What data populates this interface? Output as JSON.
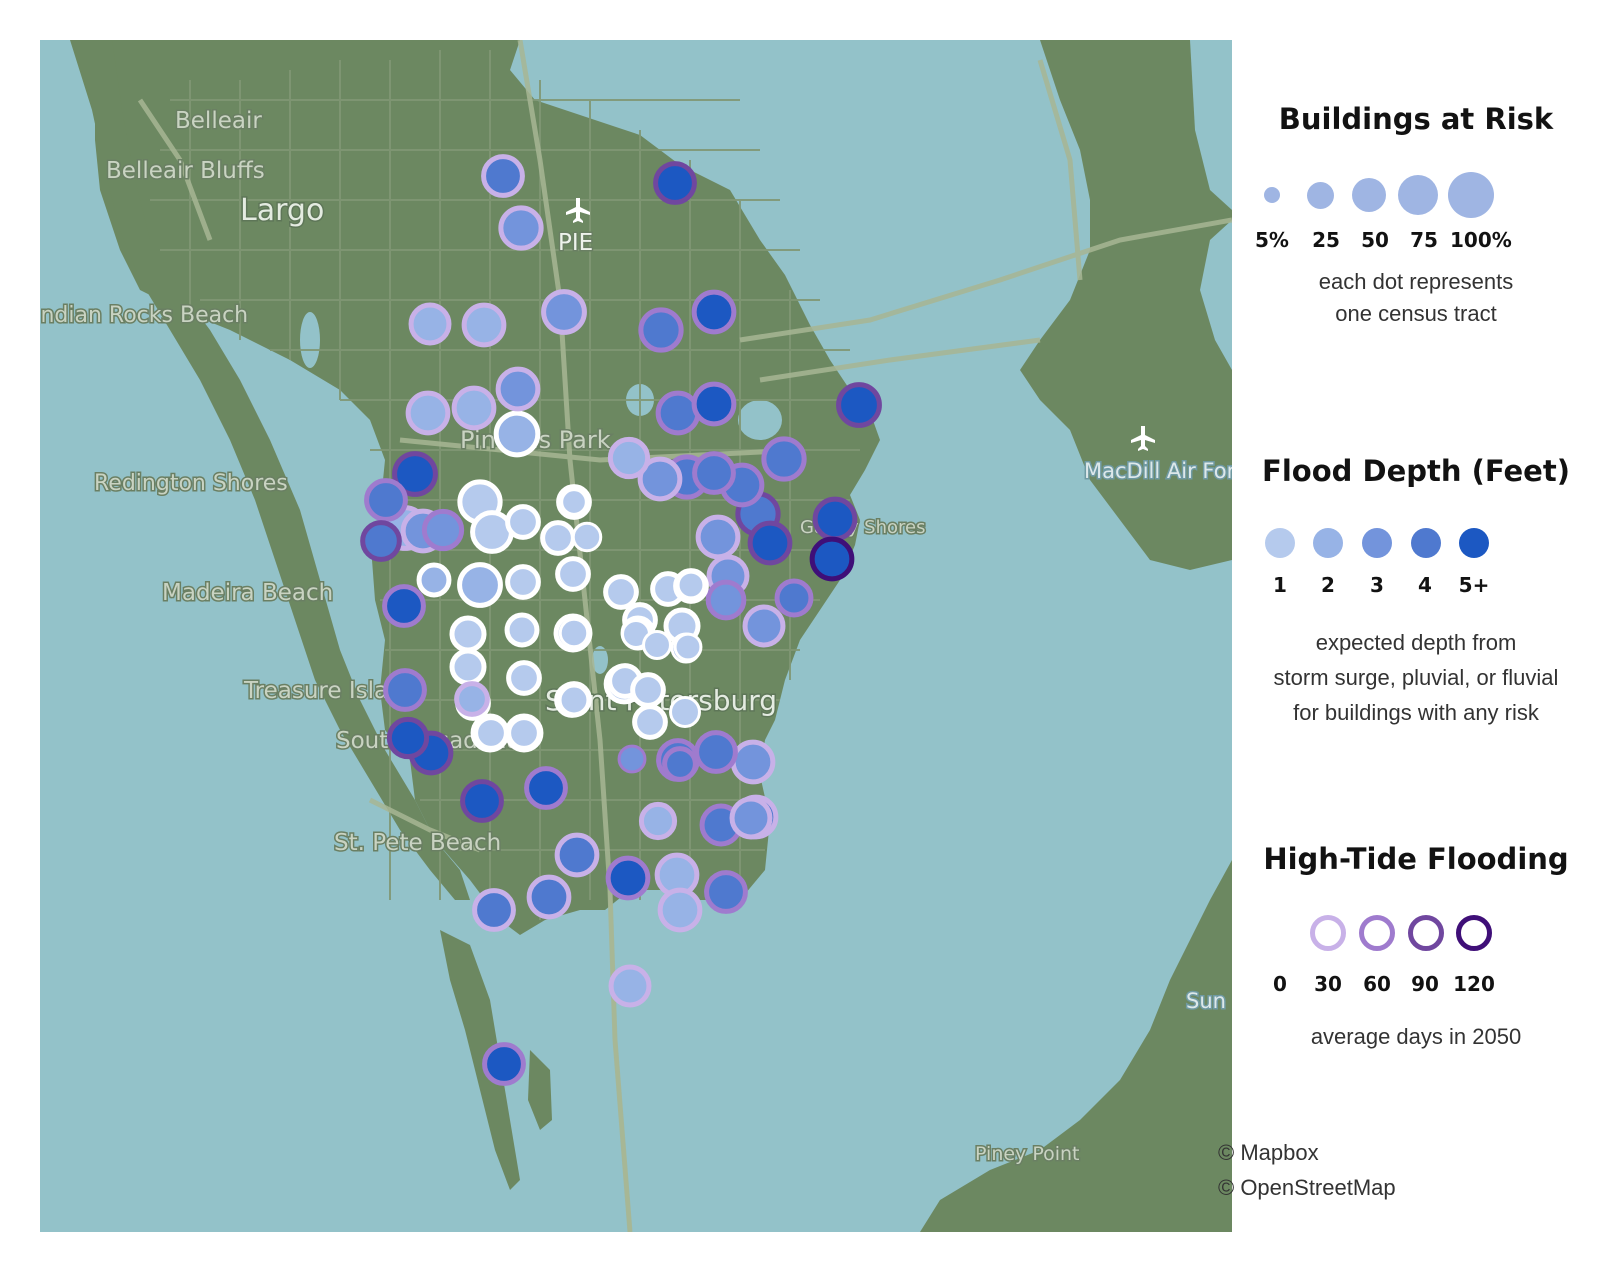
{
  "map": {
    "place_labels": [
      "Belleair",
      "Belleair Bluffs",
      "Largo",
      "PIE",
      "Indian Rocks Beach",
      "Pinellas Park",
      "Redington Shores",
      "MacDill Air Force Base",
      "Madeira Beach",
      "Treasure Island",
      "South Pasadena",
      "St. Pete Beach",
      "Saint Petersburg",
      "Gandy Shores",
      "Piney Point",
      "Sun"
    ],
    "colors": {
      "water": "#93c2c9",
      "land": "#6c8861",
      "road_major": "#a7b694",
      "road_minor": "#819774",
      "depth_1": "#b5caed",
      "depth_2": "#97b3e6",
      "depth_3": "#7394dc",
      "depth_4": "#4f79cf",
      "depth_5": "#1c58c2",
      "tide_0": "#ffffff",
      "tide_30": "#c8b1e8",
      "tide_60": "#9f7bce",
      "tide_90": "#70479f",
      "tide_120": "#3f0f78"
    },
    "tracts": [
      {
        "risk": 45,
        "depth": 4,
        "tide": 30
      },
      {
        "risk": 45,
        "depth": 5,
        "tide": 90
      },
      {
        "risk": 50,
        "depth": 3,
        "tide": 30
      },
      {
        "risk": 42,
        "depth": 2,
        "tide": 30
      },
      {
        "risk": 48,
        "depth": 2,
        "tide": 30
      },
      {
        "risk": 52,
        "depth": 3,
        "tide": 30
      },
      {
        "risk": 50,
        "depth": 4,
        "tide": 60
      },
      {
        "risk": 48,
        "depth": 5,
        "tide": 60
      },
      {
        "risk": 48,
        "depth": 2,
        "tide": 30
      },
      {
        "risk": 48,
        "depth": 2,
        "tide": 30
      },
      {
        "risk": 48,
        "depth": 3,
        "tide": 30
      },
      {
        "risk": 55,
        "depth": 2,
        "tide": 0
      },
      {
        "risk": 48,
        "depth": 4,
        "tide": 60
      },
      {
        "risk": 48,
        "depth": 5,
        "tide": 60
      },
      {
        "risk": 52,
        "depth": 5,
        "tide": 90
      },
      {
        "risk": 40,
        "depth": 2,
        "tide": 30
      },
      {
        "risk": 48,
        "depth": 3,
        "tide": 30
      },
      {
        "risk": 50,
        "depth": 4,
        "tide": 60
      },
      {
        "risk": 45,
        "depth": 4,
        "tide": 60
      },
      {
        "risk": 48,
        "depth": 4,
        "tide": 60
      },
      {
        "risk": 50,
        "depth": 4,
        "tide": 60
      },
      {
        "risk": 52,
        "depth": 5,
        "tide": 90
      },
      {
        "risk": 48,
        "depth": 3,
        "tide": 30
      },
      {
        "risk": 45,
        "depth": 4,
        "tide": 60
      },
      {
        "risk": 52,
        "depth": 2,
        "tide": 30
      },
      {
        "risk": 40,
        "depth": 3,
        "tide": 60
      },
      {
        "risk": 38,
        "depth": 4,
        "tide": 90
      },
      {
        "risk": 50,
        "depth": 1,
        "tide": 0
      },
      {
        "risk": 45,
        "depth": 1,
        "tide": 0
      },
      {
        "risk": 52,
        "depth": 2,
        "tide": 0
      },
      {
        "risk": 48,
        "depth": 3,
        "tide": 30
      },
      {
        "risk": 48,
        "depth": 5,
        "tide": 90
      },
      {
        "risk": 48,
        "depth": 5,
        "tide": 90
      },
      {
        "risk": 48,
        "depth": 5,
        "tide": 120
      },
      {
        "risk": 42,
        "depth": 3,
        "tide": 30
      },
      {
        "risk": 35,
        "depth": 3,
        "tide": 60
      },
      {
        "risk": 30,
        "depth": 4,
        "tide": 60
      },
      {
        "risk": 50,
        "depth": 4,
        "tide": 90
      },
      {
        "risk": 42,
        "depth": 3,
        "tide": 30
      },
      {
        "risk": 22,
        "depth": 1,
        "tide": 0
      },
      {
        "risk": 22,
        "depth": 1,
        "tide": 0
      },
      {
        "risk": 22,
        "depth": 1,
        "tide": 0
      },
      {
        "risk": 15,
        "depth": 1,
        "tide": 0
      },
      {
        "risk": 20,
        "depth": 2,
        "tide": 0
      },
      {
        "risk": 22,
        "depth": 1,
        "tide": 0
      },
      {
        "risk": 22,
        "depth": 1,
        "tide": 0
      },
      {
        "risk": 25,
        "depth": 1,
        "tide": 0
      },
      {
        "risk": 25,
        "depth": 1,
        "tide": 0
      },
      {
        "risk": 20,
        "depth": 1,
        "tide": 0
      },
      {
        "risk": 15,
        "depth": 1,
        "tide": 0
      },
      {
        "risk": 22,
        "depth": 1,
        "tide": 0
      },
      {
        "risk": 22,
        "depth": 1,
        "tide": 0
      },
      {
        "risk": 22,
        "depth": 1,
        "tide": 0
      },
      {
        "risk": 22,
        "depth": 1,
        "tide": 0
      },
      {
        "risk": 22,
        "depth": 1,
        "tide": 0
      },
      {
        "risk": 14,
        "depth": 1,
        "tide": 0
      },
      {
        "risk": 22,
        "depth": 1,
        "tide": 0
      },
      {
        "risk": 22,
        "depth": 1,
        "tide": 0
      },
      {
        "risk": 25,
        "depth": 1,
        "tide": 0
      },
      {
        "risk": 22,
        "depth": 1,
        "tide": 0
      },
      {
        "risk": 22,
        "depth": 1,
        "tide": 0
      },
      {
        "risk": 22,
        "depth": 1,
        "tide": 0
      },
      {
        "risk": 22,
        "depth": 1,
        "tide": 0
      },
      {
        "risk": 22,
        "depth": 1,
        "tide": 0
      },
      {
        "risk": 18,
        "depth": 1,
        "tide": 0
      },
      {
        "risk": 22,
        "depth": 1,
        "tide": 0
      },
      {
        "risk": 14,
        "depth": 1,
        "tide": 0
      },
      {
        "risk": 16,
        "depth": 3,
        "tide": 0
      },
      {
        "risk": 20,
        "depth": 1,
        "tide": 0
      },
      {
        "risk": 20,
        "depth": 1,
        "tide": 0
      },
      {
        "risk": 12,
        "depth": 1,
        "tide": 0
      },
      {
        "risk": 12,
        "depth": 1,
        "tide": 0
      },
      {
        "risk": 12,
        "depth": 1,
        "tide": 0
      },
      {
        "risk": 10,
        "depth": 1,
        "tide": 0
      },
      {
        "risk": 30,
        "depth": 1,
        "tide": 0
      },
      {
        "risk": 30,
        "depth": 2,
        "tide": 0
      },
      {
        "risk": 30,
        "depth": 2,
        "tide": 0
      },
      {
        "risk": 35,
        "depth": 1,
        "tide": 0
      },
      {
        "risk": 45,
        "depth": 4,
        "tide": 60
      },
      {
        "risk": 40,
        "depth": 5,
        "tide": 90
      },
      {
        "risk": 48,
        "depth": 5,
        "tide": 90
      },
      {
        "risk": 45,
        "depth": 5,
        "tide": 90
      },
      {
        "risk": 22,
        "depth": 2,
        "tide": 30
      },
      {
        "risk": 45,
        "depth": 5,
        "tide": 60
      },
      {
        "risk": 45,
        "depth": 4,
        "tide": 60
      },
      {
        "risk": 12,
        "depth": 3,
        "tide": 60
      },
      {
        "risk": 22,
        "depth": 4,
        "tide": 60
      },
      {
        "risk": 45,
        "depth": 4,
        "tide": 60
      },
      {
        "risk": 48,
        "depth": 3,
        "tide": 30
      },
      {
        "risk": 48,
        "depth": 4,
        "tide": 30
      },
      {
        "risk": 28,
        "depth": 2,
        "tide": 30
      },
      {
        "risk": 42,
        "depth": 4,
        "tide": 60
      },
      {
        "risk": 48,
        "depth": 4,
        "tide": 30
      },
      {
        "risk": 48,
        "depth": 4,
        "tide": 30
      },
      {
        "risk": 48,
        "depth": 5,
        "tide": 60
      },
      {
        "risk": 48,
        "depth": 2,
        "tide": 30
      },
      {
        "risk": 48,
        "depth": 2,
        "tide": 30
      },
      {
        "risk": 42,
        "depth": 2,
        "tide": 30
      },
      {
        "risk": 45,
        "depth": 4,
        "tide": 60
      },
      {
        "risk": 45,
        "depth": 4,
        "tide": 30
      },
      {
        "risk": 45,
        "depth": 5,
        "tide": 60
      },
      {
        "risk": 42,
        "depth": 3,
        "tide": 30
      },
      {
        "risk": 45,
        "depth": 5,
        "tide": 60
      }
    ]
  },
  "legend": {
    "risk": {
      "title": "Buildings at Risk",
      "items": [
        {
          "label": "5%",
          "value": 5
        },
        {
          "label": "25",
          "value": 25
        },
        {
          "label": "50",
          "value": 50
        },
        {
          "label": "75",
          "value": 75
        },
        {
          "label": "100%",
          "value": 100
        }
      ],
      "note": [
        "each dot represents",
        "one census tract"
      ],
      "dot_color": "#9fb5e3"
    },
    "depth": {
      "title": "Flood Depth (Feet)",
      "items": [
        {
          "label": "1",
          "level": 1
        },
        {
          "label": "2",
          "level": 2
        },
        {
          "label": "3",
          "level": 3
        },
        {
          "label": "4",
          "level": 4
        },
        {
          "label": "5+",
          "level": 5
        }
      ],
      "note": [
        "expected depth from",
        "storm surge, pluvial, or fluvial",
        "for buildings with any risk"
      ]
    },
    "tide": {
      "title": "High-Tide Flooding",
      "items": [
        {
          "label": "0",
          "days": 0
        },
        {
          "label": "30",
          "days": 30
        },
        {
          "label": "60",
          "days": 60
        },
        {
          "label": "90",
          "days": 90
        },
        {
          "label": "120",
          "days": 120
        }
      ],
      "note": [
        "average days in 2050"
      ]
    },
    "credits": [
      "© Mapbox",
      "© OpenStreetMap"
    ]
  }
}
